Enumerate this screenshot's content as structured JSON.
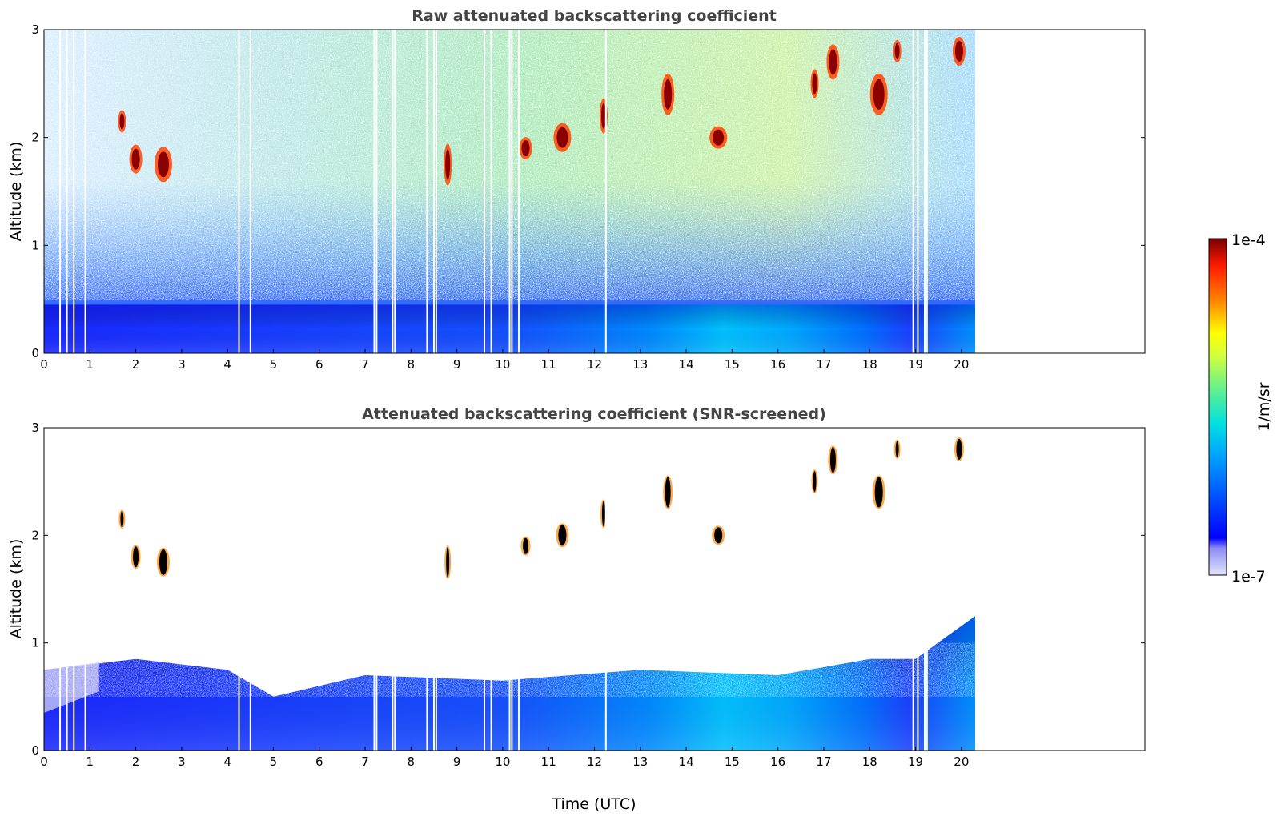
{
  "chart_data": [
    {
      "type": "heatmap",
      "title": "Raw attenuated backscattering coefficient",
      "xlabel": "",
      "ylabel": "Altitude (km)",
      "xlim": [
        0,
        24
      ],
      "ylim": [
        0,
        3
      ],
      "x_ticks": [
        "0",
        "1",
        "2",
        "3",
        "4",
        "5",
        "6",
        "7",
        "8",
        "9",
        "10",
        "11",
        "12",
        "13",
        "14",
        "15",
        "16",
        "17",
        "18",
        "19",
        "20"
      ],
      "y_ticks": [
        "0",
        "1",
        "2",
        "3"
      ],
      "data_extent_hours": 20.3,
      "colorscale": "jet",
      "dropout_times_hours": [
        0.35,
        0.5,
        0.65,
        0.9,
        4.25,
        4.5,
        7.2,
        7.25,
        7.6,
        7.65,
        8.35,
        8.5,
        8.55,
        9.6,
        9.75,
        10.15,
        10.2,
        10.35,
        12.25,
        18.95,
        19.05,
        19.2,
        19.25
      ],
      "cloud_patches": [
        {
          "t": 1.7,
          "z": 2.15
        },
        {
          "t": 2.0,
          "z": 1.8
        },
        {
          "t": 2.6,
          "z": 1.75
        },
        {
          "t": 8.8,
          "z": 1.75
        },
        {
          "t": 10.5,
          "z": 1.9
        },
        {
          "t": 11.3,
          "z": 2.0
        },
        {
          "t": 12.2,
          "z": 2.2
        },
        {
          "t": 13.6,
          "z": 2.4
        },
        {
          "t": 14.7,
          "z": 2.0
        },
        {
          "t": 16.8,
          "z": 2.5
        },
        {
          "t": 17.2,
          "z": 2.7
        },
        {
          "t": 18.2,
          "z": 2.4
        },
        {
          "t": 18.6,
          "z": 2.8
        },
        {
          "t": 19.95,
          "z": 2.8
        }
      ]
    },
    {
      "type": "heatmap",
      "title": "Attenuated backscattering coefficient (SNR-screened)",
      "xlabel": "Time (UTC)",
      "ylabel": "Altitude (km)",
      "xlim": [
        0,
        24
      ],
      "ylim": [
        0,
        3
      ],
      "x_ticks": [
        "0",
        "1",
        "2",
        "3",
        "4",
        "5",
        "6",
        "7",
        "8",
        "9",
        "10",
        "11",
        "12",
        "13",
        "14",
        "15",
        "16",
        "17",
        "18",
        "19",
        "20"
      ],
      "y_ticks": [
        "0",
        "1",
        "2",
        "3"
      ],
      "data_extent_hours": 20.3,
      "colorscale": "jet",
      "boundary_layer_top_km": [
        {
          "t": 0,
          "z": 0.75
        },
        {
          "t": 2,
          "z": 0.85
        },
        {
          "t": 4,
          "z": 0.75
        },
        {
          "t": 5,
          "z": 0.5
        },
        {
          "t": 7,
          "z": 0.7
        },
        {
          "t": 10,
          "z": 0.65
        },
        {
          "t": 13,
          "z": 0.75
        },
        {
          "t": 16,
          "z": 0.7
        },
        {
          "t": 18,
          "z": 0.85
        },
        {
          "t": 19,
          "z": 0.85
        },
        {
          "t": 20.3,
          "z": 1.25
        }
      ]
    }
  ],
  "colorbar": {
    "max_label": "1e-4",
    "min_label": "1e-7",
    "unit_label": "1/m/sr",
    "colors": [
      "#e4e4fa",
      "#0000ff",
      "#00a0ff",
      "#00d8e0",
      "#40f0a0",
      "#c0ff40",
      "#ffff00",
      "#ff8000",
      "#ff2000",
      "#800000"
    ]
  }
}
